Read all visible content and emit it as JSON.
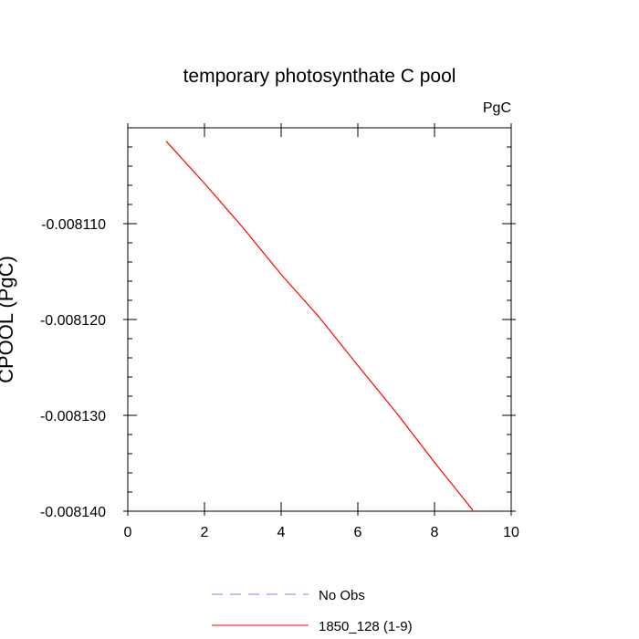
{
  "chart_data": {
    "type": "line",
    "title": "temporary photosynthate C pool",
    "units_label": "PgC",
    "ylabel": "CPOOL  (PgC)",
    "xlabel": "",
    "xlim": [
      0,
      10
    ],
    "ylim": [
      -0.00814,
      -0.0081
    ],
    "x_ticks": [
      0,
      2,
      4,
      6,
      8,
      10
    ],
    "x_tick_labels": [
      "0",
      "2",
      "4",
      "6",
      "8",
      "10"
    ],
    "y_ticks": [
      -0.00811,
      -0.00812,
      -0.00813,
      -0.00814
    ],
    "y_tick_labels": [
      "-0.008110",
      "-0.008120",
      "-0.008130",
      "-0.008140"
    ],
    "grid": false,
    "legend_position": "bottom-center",
    "series": [
      {
        "name": "No Obs",
        "color": "#8080e0",
        "dash": "dashed",
        "x": [],
        "y": []
      },
      {
        "name": "1850_128 (1-9)",
        "color": "#ff0000",
        "dash": "solid",
        "x": [
          1,
          2,
          3,
          4,
          5,
          6,
          7,
          8,
          9
        ],
        "y": [
          -0.0081014,
          -0.0081058,
          -0.0081104,
          -0.0081153,
          -0.0081198,
          -0.0081248,
          -0.0081297,
          -0.0081349,
          -0.0081399
        ]
      }
    ]
  }
}
